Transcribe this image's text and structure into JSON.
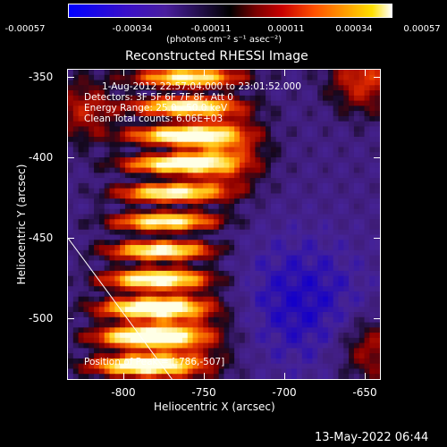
{
  "colorbar": {
    "tick_labels": [
      "-0.00057",
      "-0.00034",
      "-0.00011",
      "0.00011",
      "0.00034",
      "0.00057"
    ],
    "units": "(photons cm⁻² s⁻¹ asec⁻²)"
  },
  "header": {
    "title": "Reconstructed RHESSI Image"
  },
  "annotations": {
    "time_range": "1-Aug-2012 22:57:04.000 to 23:01:52.000",
    "detectors": "Detectors: 3F 5F 6F 7F 8F, Att 0",
    "energy_range": "Energy Range: 25.0 - 50.0 keV",
    "method": "Clean    Total counts: 6.06E+03",
    "peak": "Position of Peak = [-786,-507]"
  },
  "footer": {
    "timestamp": "13-May-2022 06:44"
  },
  "chart_data": {
    "type": "heatmap",
    "title": "Reconstructed RHESSI Image",
    "xlabel": "Heliocentric X (arcsec)",
    "ylabel": "Heliocentric Y (arcsec)",
    "xlim": [
      -835,
      -640
    ],
    "ylim": [
      -538,
      -345
    ],
    "x_ticks": [
      -800,
      -750,
      -700,
      -650
    ],
    "x_tick_labels": [
      "-800",
      "-750",
      "-700",
      "-650"
    ],
    "y_ticks": [
      -350,
      -400,
      -450,
      -500
    ],
    "y_tick_labels": [
      "-350",
      "-400",
      "-450",
      "-500"
    ],
    "color_range": [
      -0.00057,
      0.00057
    ],
    "colormap": [
      "#0000ff",
      "#4a1f9e",
      "#000000",
      "#b40000",
      "#ff7000",
      "#ffd000",
      "#ffffff"
    ],
    "peak": [
      -786,
      -507
    ],
    "limb_line": [
      [
        -835,
        -450
      ],
      [
        -770,
        -538
      ]
    ]
  }
}
